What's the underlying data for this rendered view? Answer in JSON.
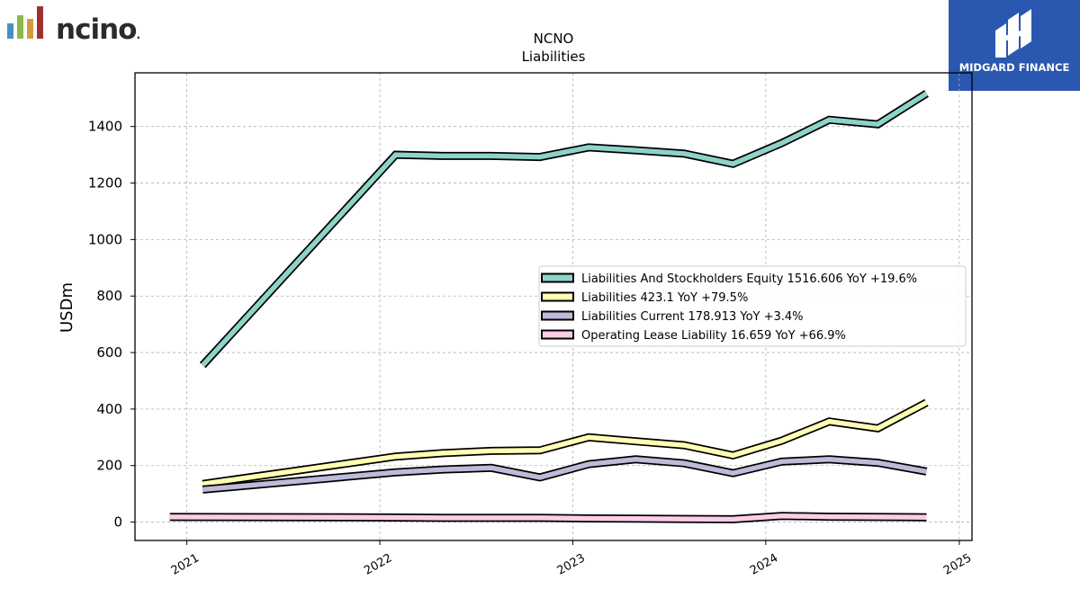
{
  "brand_left": {
    "wordmark": "ncino",
    "registered": "."
  },
  "brand_right": {
    "wordmark": "MIDGARD FINANCE"
  },
  "colors": {
    "bar1": "#4a90c0",
    "bar2": "#8db848",
    "bar3": "#d49a3c",
    "bar4": "#a03030",
    "brand_right_bg": "#2a57b0"
  },
  "chart_data": {
    "type": "line",
    "title": "NCNO",
    "subtitle": "Liabilities",
    "xlabel": "",
    "ylabel": "USDm",
    "x_ticks": [
      "2021",
      "2022",
      "2023",
      "2024",
      "2025"
    ],
    "y_ticks": [
      0,
      200,
      400,
      600,
      800,
      1000,
      1200,
      1400
    ],
    "xlim": [
      "2020-09-25",
      "2025-01-25"
    ],
    "ylim": [
      -65,
      1590
    ],
    "grid": true,
    "legend_position": "center-right",
    "series": [
      {
        "name": "Liabilities And Stockholders Equity  1516.606 YoY +19.6%",
        "color": "#8dd3c7",
        "x": [
          "2021-01-31",
          "2022-01-31",
          "2022-04-30",
          "2022-07-31",
          "2022-10-31",
          "2023-01-31",
          "2023-04-30",
          "2023-07-31",
          "2023-10-31",
          "2024-01-31",
          "2024-04-30",
          "2024-07-31",
          "2024-10-31"
        ],
        "y": [
          555,
          1300,
          1296,
          1296,
          1292,
          1326,
          1316,
          1304,
          1268,
          1341,
          1424,
          1408,
          1517
        ]
      },
      {
        "name": "Liabilities  423.1 YoY +79.5%",
        "color": "#ffffb3",
        "x": [
          "2021-01-31",
          "2022-01-31",
          "2022-04-30",
          "2022-07-31",
          "2022-10-31",
          "2023-01-31",
          "2023-04-30",
          "2023-07-31",
          "2023-10-31",
          "2024-01-31",
          "2024-04-30",
          "2024-07-31",
          "2024-10-31"
        ],
        "y": [
          135,
          232,
          244,
          252,
          254,
          300,
          286,
          272,
          236,
          288,
          356,
          332,
          423
        ]
      },
      {
        "name": "Liabilities Current  178.913 YoY +3.4%",
        "color": "#bebada",
        "x": [
          "2021-01-31",
          "2022-01-31",
          "2022-04-30",
          "2022-07-31",
          "2022-10-31",
          "2023-01-31",
          "2023-04-30",
          "2023-07-31",
          "2023-10-31",
          "2024-01-31",
          "2024-04-30",
          "2024-07-31",
          "2024-10-31"
        ],
        "y": [
          115,
          176,
          186,
          192,
          158,
          205,
          222,
          208,
          173,
          214,
          222,
          210,
          179
        ]
      },
      {
        "name": "Operating Lease Liability  16.659 YoY +66.9%",
        "color": "#fccde5",
        "x": [
          "2020-11-30",
          "2021-10-31",
          "2022-01-31",
          "2022-04-30",
          "2022-07-31",
          "2022-10-31",
          "2023-01-31",
          "2023-04-30",
          "2023-07-31",
          "2023-10-31",
          "2024-01-31",
          "2024-04-30",
          "2024-07-31",
          "2024-10-31"
        ],
        "y": [
          18,
          17,
          16,
          15,
          15,
          15,
          13,
          12,
          11,
          10,
          22,
          19,
          18,
          17
        ]
      }
    ]
  }
}
